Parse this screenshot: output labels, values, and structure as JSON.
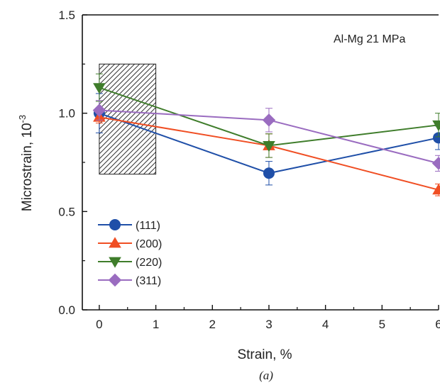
{
  "chart_data": {
    "type": "line",
    "title": "",
    "annotation": "Al-Mg 21 MPa",
    "xlabel": "Strain, %",
    "ylabel_main": "Microstrain, 10",
    "ylabel_sup": "-3",
    "caption": "(a)",
    "xlim": [
      -0.3,
      6
    ],
    "ylim": [
      0,
      1.5
    ],
    "xticks": [
      0,
      1,
      2,
      3,
      4,
      5,
      6
    ],
    "xtick_labels": [
      "0",
      "1",
      "2",
      "3",
      "4",
      "5",
      "6"
    ],
    "yticks": [
      0.0,
      0.5,
      1.0,
      1.5
    ],
    "ytick_labels": [
      "0.0",
      "0.5",
      "1.0",
      "1.5"
    ],
    "x": [
      0,
      3,
      6
    ],
    "series": [
      {
        "name": "(111)",
        "values": [
          1.0,
          0.695,
          0.875
        ],
        "errors": [
          0.1,
          0.06,
          0.06
        ],
        "color": "#1f4fa8",
        "marker": "circle"
      },
      {
        "name": "(200)",
        "values": [
          0.98,
          0.835,
          0.61
        ],
        "errors": [
          0.03,
          0.06,
          0.03
        ],
        "color": "#f04e23",
        "marker": "triangle-up"
      },
      {
        "name": "(220)",
        "values": [
          1.13,
          0.835,
          0.94
        ],
        "errors": [
          0.07,
          0.06,
          0.06
        ],
        "color": "#3f7d2b",
        "marker": "triangle-down"
      },
      {
        "name": "(311)",
        "values": [
          1.015,
          0.965,
          0.745
        ],
        "errors": [
          0.05,
          0.06,
          0.04
        ],
        "color": "#9a6cc0",
        "marker": "diamond"
      }
    ],
    "hatched_region": {
      "x": [
        0,
        1
      ],
      "y": [
        0.69,
        1.25
      ]
    },
    "grid": false,
    "legend_position": "bottom-left"
  }
}
